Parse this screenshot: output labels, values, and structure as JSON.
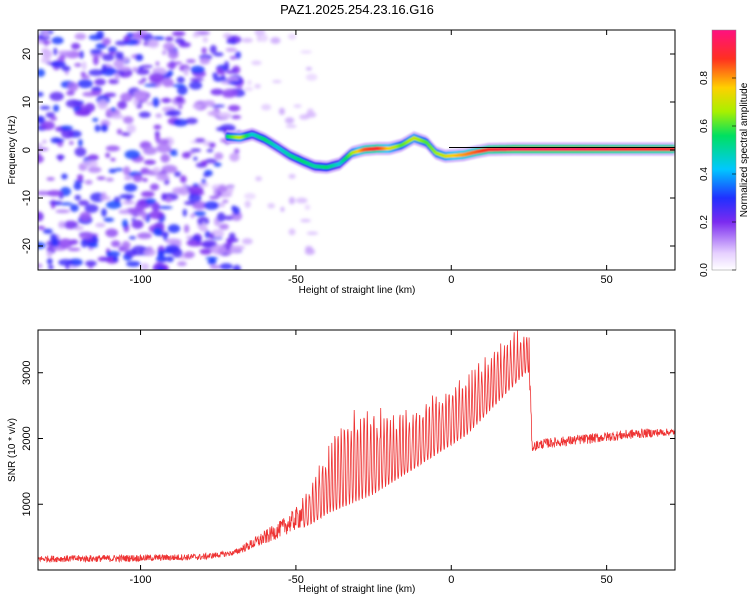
{
  "chart_data": [
    {
      "type": "heatmap",
      "title": "PAZ1.2025.254.23.16.G16",
      "xlabel": "Height of straight line (km)",
      "ylabel": "Frequency (Hz)",
      "xlim": [
        -133,
        72
      ],
      "ylim": [
        -25,
        25
      ],
      "xticks": [
        -100,
        -50,
        0,
        50
      ],
      "yticks": [
        -20,
        -10,
        0,
        10,
        20
      ],
      "xtick_labels": [
        "-100",
        "-50",
        "0",
        "50"
      ],
      "ytick_labels": [
        "-20",
        "-10",
        "0",
        "10",
        "20"
      ],
      "colorbar": {
        "label": "Normalized spectral amplitude",
        "range": [
          0,
          1
        ],
        "ticks": [
          0.0,
          0.2,
          0.4,
          0.6,
          0.8
        ],
        "tick_labels": [
          "0.0",
          "0.2",
          "0.4",
          "0.6",
          "0.8"
        ]
      },
      "ridge": {
        "x": [
          -72,
          -68,
          -64,
          -60,
          -56,
          -52,
          -48,
          -44,
          -40,
          -36,
          -32,
          -28,
          -24,
          -20,
          -16,
          -12,
          -8,
          -5,
          -2,
          0,
          4,
          8,
          12,
          20,
          40,
          60,
          72
        ],
        "y": [
          2.8,
          2.6,
          3.3,
          2.2,
          0.6,
          -1.1,
          -2.3,
          -3.4,
          -3.6,
          -2.9,
          -0.6,
          0.1,
          0.3,
          0.3,
          1.0,
          2.5,
          1.6,
          -0.6,
          -1.3,
          -1.2,
          -1.0,
          -0.4,
          0.1,
          0.2,
          0.2,
          0.2,
          0.2
        ],
        "amplitude": [
          0.55,
          0.7,
          0.45,
          0.55,
          0.45,
          0.5,
          0.55,
          0.5,
          0.55,
          0.45,
          0.65,
          0.85,
          0.9,
          0.75,
          0.6,
          0.7,
          0.6,
          0.65,
          0.7,
          0.75,
          0.8,
          0.85,
          0.9,
          0.95,
          0.95,
          0.9,
          0.9
        ]
      },
      "noise_region_x": [
        -133,
        -72
      ]
    },
    {
      "type": "line",
      "xlabel": "Height of straight line (km)",
      "ylabel": "SNR (10 * v/v)",
      "xlim": [
        -133,
        72
      ],
      "ylim": [
        0,
        3650
      ],
      "xticks": [
        -100,
        -50,
        0,
        50
      ],
      "yticks": [
        1000,
        2000,
        3000
      ],
      "xtick_labels": [
        "-100",
        "-50",
        "0",
        "50"
      ],
      "ytick_labels": [
        "1000",
        "2000",
        "3000"
      ],
      "series": [
        {
          "name": "SNR",
          "color": "#ee3333",
          "envelope_x": [
            -133,
            -110,
            -90,
            -80,
            -70,
            -65,
            -60,
            -55,
            -50,
            -45,
            -40,
            -35,
            -30,
            -25,
            -20,
            -15,
            -10,
            -5,
            0,
            5,
            10,
            15,
            20,
            24,
            25,
            26,
            30,
            40,
            50,
            60,
            72
          ],
          "envelope_base": [
            120,
            120,
            140,
            150,
            220,
            300,
            380,
            500,
            600,
            700,
            850,
            950,
            1050,
            1150,
            1300,
            1450,
            1600,
            1750,
            1900,
            2050,
            2300,
            2550,
            2800,
            3000,
            3000,
            1800,
            1850,
            1900,
            1950,
            2000,
            2050
          ],
          "envelope_peak": [
            220,
            230,
            240,
            250,
            300,
            450,
            600,
            750,
            950,
            1300,
            1900,
            2350,
            2600,
            2500,
            2450,
            2450,
            2550,
            2700,
            2900,
            3050,
            3250,
            3450,
            3650,
            3650,
            3650,
            1950,
            2000,
            2050,
            2100,
            2150,
            2150
          ]
        }
      ]
    }
  ]
}
